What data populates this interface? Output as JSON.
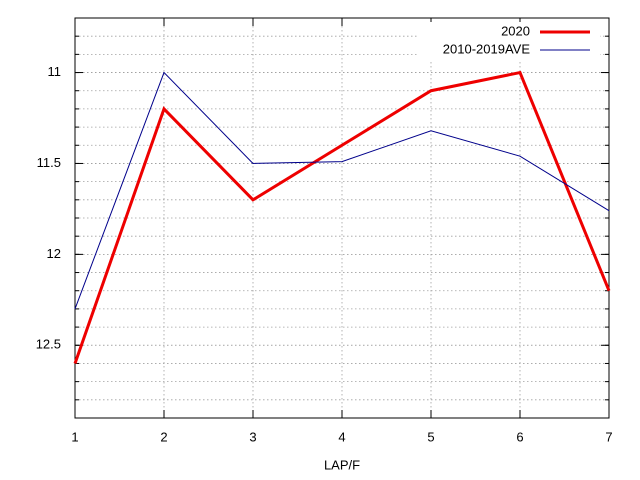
{
  "chart_data": {
    "type": "line",
    "x_label": "LAP/F",
    "x": [
      1,
      2,
      3,
      4,
      5,
      6,
      7
    ],
    "xlim": [
      1,
      7
    ],
    "xticks": [
      1,
      2,
      3,
      4,
      5,
      6,
      7
    ],
    "ylim": [
      10.7,
      12.9
    ],
    "y_reversed": true,
    "yticks": [
      11,
      11.5,
      12,
      12.5
    ],
    "yminor": 5,
    "grid": true,
    "legend": "top-right",
    "series": [
      {
        "name": "2020",
        "color": "#ee0000",
        "width": 3,
        "values": [
          12.6,
          11.2,
          11.7,
          11.4,
          11.1,
          11.0,
          12.2
        ]
      },
      {
        "name": "2010-2019AVE",
        "color": "#00008b",
        "width": 1,
        "values": [
          12.3,
          11.0,
          11.5,
          11.49,
          11.32,
          11.46,
          11.76
        ]
      }
    ]
  }
}
